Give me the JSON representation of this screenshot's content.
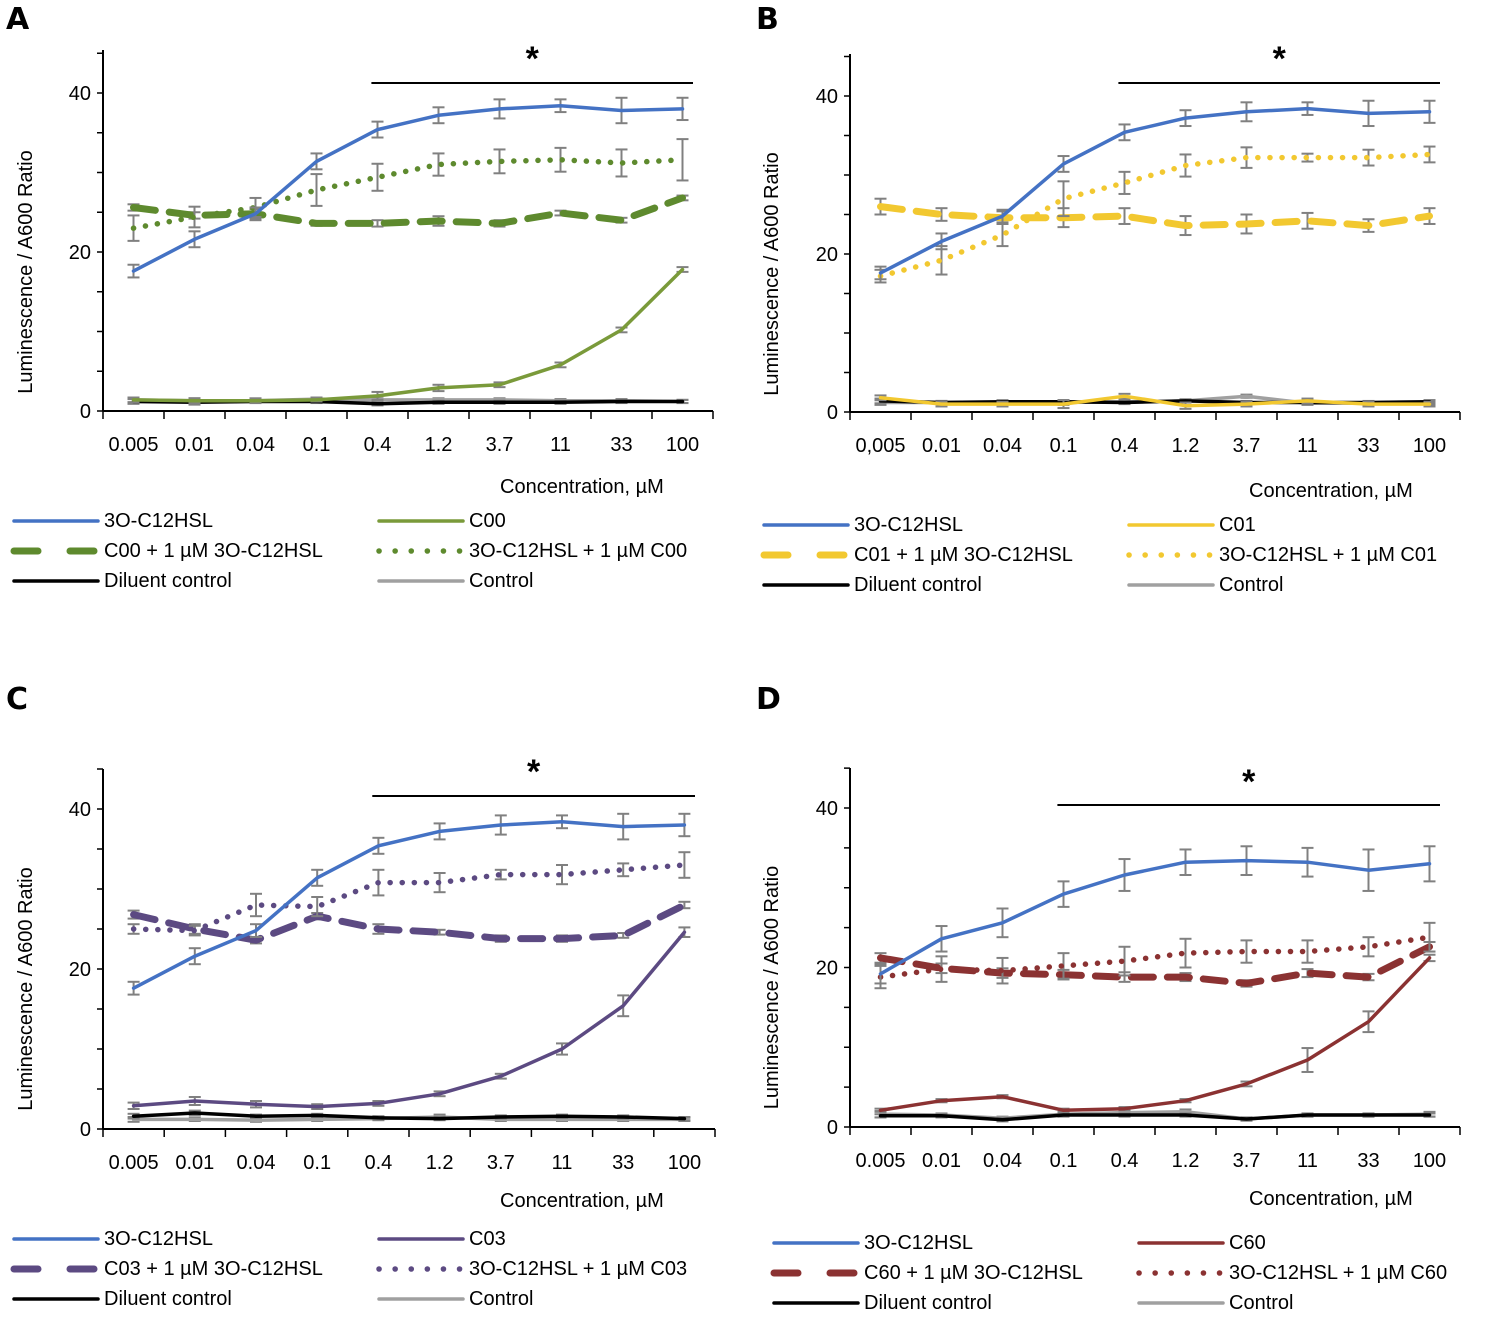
{
  "chart_data": [
    {
      "panel": "A",
      "type": "line",
      "title": "",
      "xlabel": "Concentration, µM",
      "ylabel": "Luminescence / A600 Ratio",
      "categories": [
        "0.005",
        "0.01",
        "0.04",
        "0.1",
        "0.4",
        "1.2",
        "3.7",
        "11",
        "33",
        "100"
      ],
      "ylim": [
        0,
        45
      ],
      "yticks": [
        0,
        20,
        40
      ],
      "significance": {
        "label": "*",
        "from": "0.4",
        "to": "100"
      },
      "legend": "bottom",
      "series": [
        {
          "name": "3O-C12HSL",
          "style": "solid",
          "color": "#4472C4",
          "values": [
            17.6,
            21.6,
            24.8,
            31.4,
            35.4,
            37.2,
            38.0,
            38.4,
            37.8,
            38.0
          ],
          "err": [
            0.8,
            1.0,
            0.8,
            1.0,
            1.0,
            1.0,
            1.2,
            0.8,
            1.6,
            1.4
          ]
        },
        {
          "name": "C00",
          "style": "solid",
          "color": "#7A9A3A",
          "values": [
            1.4,
            1.3,
            1.3,
            1.4,
            1.9,
            2.9,
            3.3,
            5.8,
            10.2,
            17.8
          ],
          "err": [
            0.3,
            0.3,
            0.3,
            0.2,
            0.5,
            0.4,
            0.3,
            0.3,
            0.3,
            0.3
          ]
        },
        {
          "name": "C00 + 1 µM 3O-C12HSL",
          "style": "dashed",
          "color": "#5E8A2E",
          "values": [
            25.6,
            24.6,
            24.8,
            23.6,
            23.6,
            23.9,
            23.6,
            24.9,
            24.0,
            26.8
          ],
          "err": [
            0.4,
            0.4,
            0.6,
            0.3,
            0.4,
            0.6,
            0.4,
            0.3,
            0.3,
            0.3
          ]
        },
        {
          "name": "3O-C12HSL + 1 µM C00",
          "style": "dotted",
          "color": "#5E8A2E",
          "values": [
            23.0,
            24.4,
            25.6,
            27.8,
            29.4,
            31.0,
            31.4,
            31.6,
            31.2,
            31.6
          ],
          "err": [
            1.6,
            1.3,
            1.2,
            2.0,
            1.7,
            1.4,
            1.5,
            1.5,
            1.7,
            2.6
          ]
        },
        {
          "name": "Diluent control",
          "style": "solid",
          "color": "#000000",
          "values": [
            1.2,
            1.1,
            1.2,
            1.2,
            0.9,
            1.1,
            1.1,
            1.1,
            1.2,
            1.2
          ],
          "err": [
            0.3,
            0.3,
            0.2,
            0.2,
            0.2,
            0.2,
            0.2,
            0.2,
            0.2,
            0.2
          ]
        },
        {
          "name": "Control",
          "style": "solid",
          "color": "#A0A0A0",
          "values": [
            1.4,
            1.3,
            1.3,
            1.5,
            1.4,
            1.4,
            1.4,
            1.3,
            1.3,
            1.2
          ],
          "err": [
            0.3,
            0.3,
            0.2,
            0.2,
            0.2,
            0.2,
            0.2,
            0.2,
            0.2,
            0.2
          ]
        }
      ]
    },
    {
      "panel": "B",
      "type": "line",
      "title": "",
      "xlabel": "Concentration, µM",
      "ylabel": "Luminescence / A600 Ratio",
      "categories": [
        "0,005",
        "0.01",
        "0.04",
        "0.1",
        "0.4",
        "1.2",
        "3.7",
        "11",
        "33",
        "100"
      ],
      "ylim": [
        0,
        45
      ],
      "yticks": [
        0,
        20,
        40
      ],
      "significance": {
        "label": "*",
        "from": "0.4",
        "to": "100"
      },
      "legend": "bottom",
      "series": [
        {
          "name": "3O-C12HSL",
          "style": "solid",
          "color": "#4472C4",
          "values": [
            17.6,
            21.6,
            24.8,
            31.4,
            35.4,
            37.2,
            38.0,
            38.4,
            37.8,
            38.0
          ],
          "err": [
            0.8,
            1.0,
            0.8,
            1.0,
            1.0,
            1.0,
            1.2,
            0.8,
            1.6,
            1.4
          ]
        },
        {
          "name": "C01",
          "style": "solid",
          "color": "#F2C830",
          "values": [
            1.8,
            1.0,
            1.0,
            1.0,
            2.0,
            0.8,
            1.0,
            1.4,
            1.0,
            1.0
          ],
          "err": [
            0.3,
            0.3,
            0.3,
            0.5,
            0.3,
            0.4,
            0.3,
            0.3,
            0.3,
            0.3
          ]
        },
        {
          "name": "C01 + 1 µM 3O-C12HSL",
          "style": "dashed",
          "color": "#F2C830",
          "values": [
            26.0,
            25.0,
            24.6,
            24.6,
            24.8,
            23.6,
            23.8,
            24.2,
            23.6,
            24.8
          ],
          "err": [
            1.0,
            0.8,
            0.8,
            1.2,
            1.0,
            1.2,
            1.2,
            1.0,
            0.8,
            1.0
          ]
        },
        {
          "name": "3O-C12HSL + 1 µM C01",
          "style": "dotted",
          "color": "#F2C830",
          "values": [
            17.2,
            19.2,
            22.4,
            27.0,
            29.0,
            31.2,
            32.2,
            32.2,
            32.2,
            32.6
          ],
          "err": [
            0.8,
            1.8,
            1.4,
            2.2,
            1.4,
            1.4,
            1.3,
            0.5,
            1.0,
            1.0
          ]
        },
        {
          "name": "Diluent control",
          "style": "solid",
          "color": "#000000",
          "values": [
            1.4,
            1.2,
            1.3,
            1.3,
            1.2,
            1.4,
            1.2,
            1.2,
            1.2,
            1.3
          ],
          "err": [
            0.3,
            0.2,
            0.2,
            0.2,
            0.2,
            0.2,
            0.2,
            0.2,
            0.2,
            0.2
          ]
        },
        {
          "name": "Control",
          "style": "solid",
          "color": "#A0A0A0",
          "values": [
            1.2,
            1.2,
            1.2,
            1.2,
            1.3,
            1.4,
            2.0,
            1.1,
            1.1,
            1.2
          ],
          "err": [
            0.3,
            0.2,
            0.2,
            0.3,
            0.2,
            0.2,
            0.2,
            0.2,
            0.2,
            0.3
          ]
        }
      ]
    },
    {
      "panel": "C",
      "type": "line",
      "title": "",
      "xlabel": "Concentration, µM",
      "ylabel": "Luminescence / A600 Ratio",
      "categories": [
        "0.005",
        "0.01",
        "0.04",
        "0.1",
        "0.4",
        "1.2",
        "3.7",
        "11",
        "33",
        "100"
      ],
      "ylim": [
        0,
        45
      ],
      "yticks": [
        0,
        20,
        40
      ],
      "significance": {
        "label": "*",
        "from": "0.4",
        "to": "100"
      },
      "legend": "bottom",
      "series": [
        {
          "name": "3O-C12HSL",
          "style": "solid",
          "color": "#4472C4",
          "values": [
            17.6,
            21.6,
            24.8,
            31.4,
            35.4,
            37.2,
            38.0,
            38.4,
            37.8,
            38.0
          ],
          "err": [
            0.8,
            1.0,
            0.8,
            1.0,
            1.0,
            1.0,
            1.2,
            0.8,
            1.6,
            1.4
          ]
        },
        {
          "name": "C03",
          "style": "solid",
          "color": "#5C4A82",
          "values": [
            2.9,
            3.5,
            3.1,
            2.8,
            3.2,
            4.4,
            6.6,
            10.0,
            15.4,
            24.6
          ],
          "err": [
            0.4,
            0.5,
            0.4,
            0.3,
            0.3,
            0.3,
            0.3,
            0.7,
            1.3,
            0.6
          ]
        },
        {
          "name": "C03 + 1 µM 3O-C12HSL",
          "style": "dashed",
          "color": "#5C4A82",
          "values": [
            26.8,
            25.0,
            23.6,
            26.6,
            25.0,
            24.6,
            23.8,
            23.8,
            24.2,
            28.0
          ],
          "err": [
            0.5,
            0.6,
            0.4,
            0.4,
            0.6,
            0.3,
            0.4,
            0.4,
            0.3,
            0.4
          ]
        },
        {
          "name": "3O-C12HSL + 1 µM C03",
          "style": "dotted",
          "color": "#5C4A82",
          "values": [
            25.0,
            24.8,
            28.0,
            27.8,
            30.8,
            30.8,
            31.8,
            31.8,
            32.4,
            33.0
          ],
          "err": [
            0.6,
            0.6,
            1.4,
            1.2,
            1.6,
            1.2,
            0.6,
            1.2,
            0.8,
            1.6
          ]
        },
        {
          "name": "Diluent control",
          "style": "solid",
          "color": "#000000",
          "values": [
            1.6,
            2.0,
            1.6,
            1.7,
            1.4,
            1.3,
            1.5,
            1.6,
            1.5,
            1.3
          ],
          "err": [
            0.3,
            0.3,
            0.2,
            0.2,
            0.2,
            0.2,
            0.2,
            0.2,
            0.2,
            0.2
          ]
        },
        {
          "name": "Control",
          "style": "solid",
          "color": "#A0A0A0",
          "values": [
            1.2,
            1.2,
            1.1,
            1.2,
            1.3,
            1.5,
            1.2,
            1.2,
            1.2,
            1.2
          ],
          "err": [
            0.3,
            0.2,
            0.2,
            0.2,
            0.2,
            0.3,
            0.2,
            0.2,
            0.2,
            0.2
          ]
        }
      ]
    },
    {
      "panel": "D",
      "type": "line",
      "title": "",
      "xlabel": "Concentration, µM",
      "ylabel": "Luminescence / A600 Ratio",
      "categories": [
        "0.005",
        "0.01",
        "0.04",
        "0.1",
        "0.4",
        "1.2",
        "3.7",
        "11",
        "33",
        "100"
      ],
      "ylim": [
        0,
        45
      ],
      "yticks": [
        0,
        20,
        40
      ],
      "significance": {
        "label": "*",
        "from": "0.1",
        "to": "100"
      },
      "legend": "bottom",
      "series": [
        {
          "name": "3O-C12HSL",
          "style": "solid",
          "color": "#4472C4",
          "values": [
            19.2,
            23.6,
            25.6,
            29.2,
            31.6,
            33.2,
            33.4,
            33.2,
            32.2,
            33.0
          ],
          "err": [
            1.2,
            1.6,
            1.8,
            1.6,
            2.0,
            1.6,
            1.8,
            1.8,
            2.6,
            2.2
          ]
        },
        {
          "name": "C60",
          "style": "solid",
          "color": "#8B3232",
          "values": [
            2.1,
            3.3,
            3.8,
            2.1,
            2.3,
            3.3,
            5.4,
            8.4,
            13.2,
            21.2
          ],
          "err": [
            0.2,
            0.2,
            0.2,
            0.2,
            0.2,
            0.2,
            0.3,
            1.5,
            1.3,
            0.4
          ]
        },
        {
          "name": "C60 + 1 µM 3O-C12HSL",
          "style": "dashed",
          "color": "#8B3232",
          "values": [
            21.2,
            19.9,
            19.3,
            19.1,
            18.8,
            18.8,
            18.0,
            19.3,
            18.8,
            22.6
          ],
          "err": [
            0.6,
            0.6,
            0.6,
            0.6,
            0.6,
            0.5,
            0.4,
            0.5,
            0.4,
            0.6
          ]
        },
        {
          "name": "3O-C12HSL + 1 µM C60",
          "style": "dotted",
          "color": "#8B3232",
          "values": [
            18.8,
            19.8,
            19.6,
            20.2,
            20.8,
            21.8,
            22.0,
            22.0,
            22.6,
            23.8
          ],
          "err": [
            1.4,
            1.6,
            1.6,
            1.6,
            1.8,
            1.8,
            1.4,
            1.4,
            1.2,
            1.8
          ]
        },
        {
          "name": "Diluent control",
          "style": "solid",
          "color": "#000000",
          "values": [
            1.4,
            1.4,
            0.9,
            1.5,
            1.5,
            1.5,
            1.0,
            1.5,
            1.5,
            1.5
          ],
          "err": [
            0.2,
            0.2,
            0.2,
            0.2,
            0.2,
            0.2,
            0.2,
            0.2,
            0.2,
            0.2
          ]
        },
        {
          "name": "Control",
          "style": "solid",
          "color": "#A0A0A0",
          "values": [
            1.6,
            1.5,
            1.1,
            1.6,
            1.8,
            1.9,
            1.0,
            1.5,
            1.5,
            1.6
          ],
          "err": [
            0.4,
            0.2,
            0.2,
            0.2,
            0.2,
            0.3,
            0.2,
            0.2,
            0.2,
            0.3
          ]
        }
      ]
    }
  ]
}
